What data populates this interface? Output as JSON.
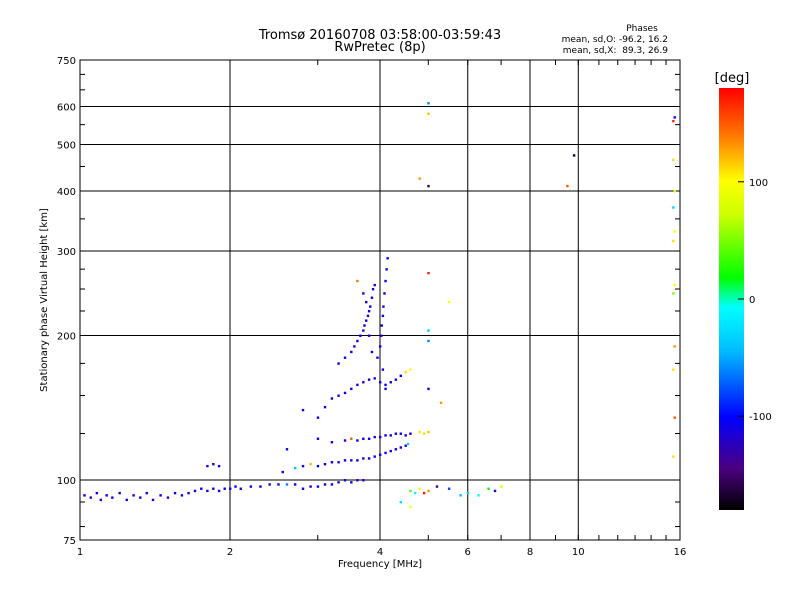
{
  "chart_data": {
    "type": "scatter",
    "title": "Tromsø 20160708 03:58:00-03:59:43",
    "subtitle": "RwPretec (8p)",
    "xlabel": "Frequency [MHz]",
    "ylabel": "Stationary phase Virtual Height [km]",
    "x_scale": "log",
    "y_scale": "log",
    "xlim": [
      1,
      16
    ],
    "ylim": [
      75,
      750
    ],
    "x_ticks": [
      1,
      2,
      4,
      6,
      8,
      10,
      16
    ],
    "x_tick_labels": [
      "1",
      "2",
      "4",
      "6",
      "8",
      "10",
      "16"
    ],
    "y_ticks": [
      75,
      100,
      200,
      300,
      400,
      500,
      600,
      750
    ],
    "y_tick_labels": [
      "75",
      "100",
      "200",
      "300",
      "400",
      "500",
      "600",
      "750"
    ],
    "grid": true,
    "stats_box": {
      "heading": "Phases",
      "line1": "mean, sd,O: -96.2, 16.2",
      "line2": "mean, sd,X:  89.3, 26.9"
    },
    "colorbar": {
      "label": "[deg]",
      "range": [
        -180,
        180
      ],
      "ticks": [
        100,
        0,
        -100
      ],
      "tick_labels": [
        "100",
        "0",
        "-100"
      ]
    },
    "points": [
      [
        1.02,
        93,
        -110
      ],
      [
        1.05,
        92,
        -115
      ],
      [
        1.08,
        94,
        -105
      ],
      [
        1.1,
        91,
        -120
      ],
      [
        1.13,
        93,
        -110
      ],
      [
        1.16,
        92,
        -100
      ],
      [
        1.2,
        94,
        -115
      ],
      [
        1.24,
        91,
        -110
      ],
      [
        1.28,
        93,
        -120
      ],
      [
        1.32,
        92,
        -105
      ],
      [
        1.36,
        94,
        -110
      ],
      [
        1.4,
        91,
        -115
      ],
      [
        1.45,
        93,
        -100
      ],
      [
        1.5,
        92,
        -120
      ],
      [
        1.55,
        94,
        -110
      ],
      [
        1.6,
        93,
        -105
      ],
      [
        1.65,
        94,
        -115
      ],
      [
        1.7,
        95,
        -110
      ],
      [
        1.75,
        96,
        -100
      ],
      [
        1.8,
        95,
        -120
      ],
      [
        1.85,
        96,
        -110
      ],
      [
        1.9,
        95,
        -105
      ],
      [
        1.95,
        96,
        -115
      ],
      [
        2.0,
        96,
        -110
      ],
      [
        2.05,
        97,
        -100
      ],
      [
        2.1,
        96,
        -120
      ],
      [
        2.2,
        97,
        -110
      ],
      [
        2.3,
        97,
        -105
      ],
      [
        2.4,
        98,
        -115
      ],
      [
        2.5,
        98,
        -110
      ],
      [
        2.6,
        98,
        -60
      ],
      [
        2.7,
        98,
        -100
      ],
      [
        2.8,
        96,
        -110
      ],
      [
        2.9,
        97,
        -120
      ],
      [
        3.0,
        97,
        -100
      ],
      [
        3.1,
        98,
        -110
      ],
      [
        3.2,
        98,
        -105
      ],
      [
        3.3,
        99,
        -115
      ],
      [
        3.4,
        100,
        -110
      ],
      [
        3.5,
        99,
        -100
      ],
      [
        3.6,
        100,
        -120
      ],
      [
        3.7,
        100,
        -110
      ],
      [
        1.8,
        107,
        -110
      ],
      [
        1.85,
        108,
        -120
      ],
      [
        1.9,
        107,
        -100
      ],
      [
        2.55,
        104,
        -110
      ],
      [
        2.7,
        106,
        -40
      ],
      [
        2.8,
        107,
        -110
      ],
      [
        2.9,
        108,
        120
      ],
      [
        3.0,
        107,
        -100
      ],
      [
        3.1,
        108,
        -110
      ],
      [
        3.2,
        109,
        -100
      ],
      [
        3.3,
        109,
        -115
      ],
      [
        3.4,
        110,
        -105
      ],
      [
        3.5,
        110,
        -110
      ],
      [
        3.6,
        110,
        -100
      ],
      [
        3.7,
        111,
        -120
      ],
      [
        3.8,
        111,
        -110
      ],
      [
        3.9,
        112,
        -100
      ],
      [
        4.0,
        113,
        -110
      ],
      [
        4.1,
        114,
        -105
      ],
      [
        4.2,
        115,
        -110
      ],
      [
        4.3,
        116,
        -100
      ],
      [
        4.4,
        117,
        -110
      ],
      [
        4.5,
        118,
        -120
      ],
      [
        4.55,
        119,
        -30
      ],
      [
        2.6,
        116,
        -110
      ],
      [
        3.0,
        122,
        -100
      ],
      [
        3.2,
        120,
        -110
      ],
      [
        3.4,
        121,
        -120
      ],
      [
        3.5,
        122,
        150
      ],
      [
        3.6,
        121,
        -100
      ],
      [
        3.7,
        122,
        -110
      ],
      [
        3.8,
        122,
        -105
      ],
      [
        3.9,
        123,
        -115
      ],
      [
        4.0,
        123,
        -110
      ],
      [
        4.1,
        124,
        -100
      ],
      [
        4.2,
        124,
        -120
      ],
      [
        4.3,
        125,
        -110
      ],
      [
        4.4,
        125,
        -105
      ],
      [
        4.5,
        124,
        -115
      ],
      [
        4.6,
        125,
        -110
      ],
      [
        4.8,
        126,
        80
      ],
      [
        4.9,
        125,
        110
      ],
      [
        5.0,
        126,
        120
      ],
      [
        2.8,
        140,
        -110
      ],
      [
        3.0,
        135,
        -100
      ],
      [
        3.1,
        142,
        -105
      ],
      [
        3.2,
        148,
        -110
      ],
      [
        3.3,
        150,
        -120
      ],
      [
        3.4,
        152,
        -100
      ],
      [
        3.5,
        155,
        -110
      ],
      [
        3.6,
        158,
        -105
      ],
      [
        3.7,
        160,
        -115
      ],
      [
        3.8,
        162,
        -110
      ],
      [
        3.9,
        163,
        -100
      ],
      [
        4.0,
        160,
        -110
      ],
      [
        4.1,
        158,
        -105
      ],
      [
        4.2,
        160,
        -115
      ],
      [
        4.3,
        162,
        -110
      ],
      [
        4.4,
        165,
        -100
      ],
      [
        4.5,
        168,
        110
      ],
      [
        4.6,
        170,
        100
      ],
      [
        3.3,
        175,
        -110
      ],
      [
        3.4,
        180,
        -100
      ],
      [
        3.5,
        185,
        -105
      ],
      [
        3.55,
        190,
        -115
      ],
      [
        3.6,
        195,
        -110
      ],
      [
        3.65,
        200,
        -100
      ],
      [
        3.7,
        205,
        -120
      ],
      [
        3.72,
        210,
        -110
      ],
      [
        3.75,
        215,
        -105
      ],
      [
        3.78,
        220,
        -115
      ],
      [
        3.8,
        225,
        -110
      ],
      [
        3.82,
        230,
        -100
      ],
      [
        3.85,
        240,
        -110
      ],
      [
        3.87,
        250,
        -105
      ],
      [
        3.9,
        255,
        -115
      ],
      [
        3.6,
        260,
        140
      ],
      [
        3.7,
        245,
        -110
      ],
      [
        3.75,
        235,
        -120
      ],
      [
        3.8,
        200,
        -110
      ],
      [
        3.85,
        185,
        -105
      ],
      [
        3.95,
        180,
        -110
      ],
      [
        4.0,
        190,
        -100
      ],
      [
        4.02,
        200,
        -115
      ],
      [
        4.03,
        210,
        -110
      ],
      [
        4.05,
        220,
        -105
      ],
      [
        4.06,
        230,
        -120
      ],
      [
        4.08,
        245,
        -110
      ],
      [
        4.1,
        260,
        -100
      ],
      [
        4.12,
        275,
        -110
      ],
      [
        4.14,
        290,
        -105
      ],
      [
        4.05,
        170,
        -115
      ],
      [
        4.1,
        155,
        -110
      ],
      [
        4.6,
        95,
        40
      ],
      [
        4.7,
        94,
        -10
      ],
      [
        4.8,
        96,
        90
      ],
      [
        4.9,
        94,
        170
      ],
      [
        5.0,
        95,
        130
      ],
      [
        5.2,
        97,
        -130
      ],
      [
        5.5,
        96,
        -80
      ],
      [
        5.8,
        93,
        -40
      ],
      [
        6.0,
        94,
        -30
      ],
      [
        6.3,
        93,
        -10
      ],
      [
        6.6,
        96,
        20
      ],
      [
        6.8,
        95,
        -120
      ],
      [
        7.0,
        97,
        80
      ],
      [
        4.4,
        90,
        -20
      ],
      [
        4.6,
        88,
        100
      ],
      [
        5.0,
        610,
        -60
      ],
      [
        5.0,
        580,
        120
      ],
      [
        5.0,
        410,
        -160
      ],
      [
        4.8,
        425,
        130
      ],
      [
        5.0,
        270,
        170
      ],
      [
        5.0,
        205,
        -40
      ],
      [
        5.0,
        195,
        -60
      ],
      [
        5.0,
        155,
        -100
      ],
      [
        5.5,
        235,
        100
      ],
      [
        5.3,
        145,
        130
      ],
      [
        9.5,
        410,
        150
      ],
      [
        9.8,
        475,
        -170
      ],
      [
        15.5,
        560,
        170
      ],
      [
        15.6,
        570,
        -100
      ],
      [
        15.5,
        465,
        110
      ],
      [
        15.6,
        400,
        90
      ],
      [
        15.5,
        370,
        -30
      ],
      [
        15.6,
        330,
        100
      ],
      [
        15.5,
        315,
        110
      ],
      [
        15.6,
        255,
        100
      ],
      [
        15.5,
        245,
        50
      ],
      [
        15.6,
        190,
        130
      ],
      [
        15.5,
        170,
        110
      ],
      [
        15.6,
        135,
        150
      ],
      [
        15.5,
        112,
        110
      ]
    ]
  }
}
